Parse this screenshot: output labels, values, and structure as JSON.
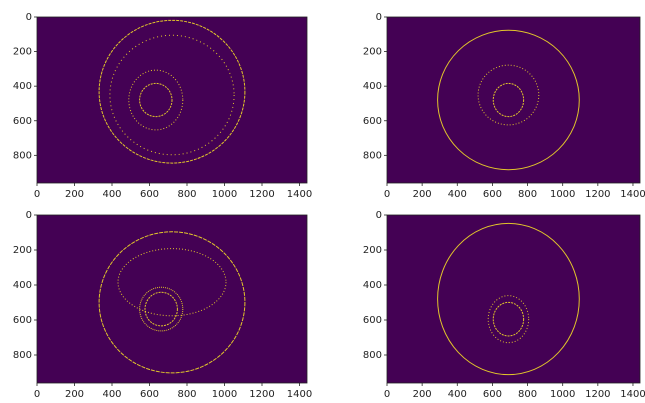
{
  "chart_data": [
    {
      "type": "image",
      "color": "#440154",
      "edge_color": "#fde725",
      "xlim": [
        0,
        1440
      ],
      "ylim": [
        960,
        0
      ],
      "xticks": [
        0,
        200,
        400,
        600,
        800,
        1000,
        1200,
        1400
      ],
      "yticks": [
        0,
        200,
        400,
        600,
        800
      ]
    },
    {
      "type": "image",
      "color": "#440154",
      "edge_color": "#fde725",
      "xlim": [
        0,
        1440
      ],
      "ylim": [
        960,
        0
      ],
      "xticks": [
        0,
        200,
        400,
        600,
        800,
        1000,
        1200,
        1400
      ],
      "yticks": [
        0,
        200,
        400,
        600,
        800
      ]
    },
    {
      "type": "image",
      "color": "#440154",
      "edge_color": "#fde725",
      "xlim": [
        0,
        1440
      ],
      "ylim": [
        960,
        0
      ],
      "xticks": [
        0,
        200,
        400,
        600,
        800,
        1000,
        1200,
        1400
      ],
      "yticks": [
        0,
        200,
        400,
        600,
        800
      ]
    },
    {
      "type": "image",
      "color": "#440154",
      "edge_color": "#fde725",
      "xlim": [
        0,
        1440
      ],
      "ylim": [
        960,
        0
      ],
      "xticks": [
        0,
        200,
        400,
        600,
        800,
        1000,
        1200,
        1400
      ],
      "yticks": [
        0,
        200,
        400,
        600,
        800
      ]
    }
  ]
}
